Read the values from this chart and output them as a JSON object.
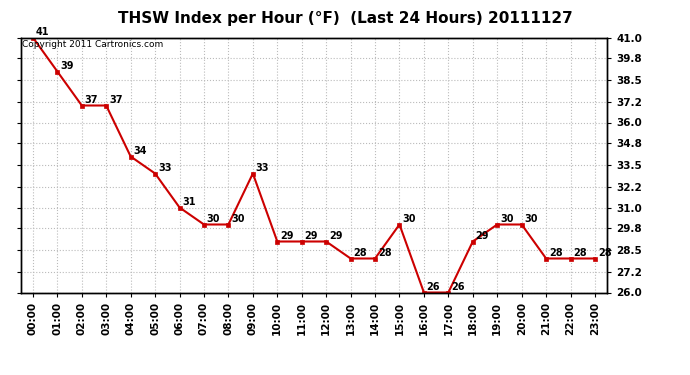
{
  "title": "THSW Index per Hour (°F)  (Last 24 Hours) 20111127",
  "copyright_text": "Copyright 2011 Cartronics.com",
  "hours": [
    "00:00",
    "01:00",
    "02:00",
    "03:00",
    "04:00",
    "05:00",
    "06:00",
    "07:00",
    "08:00",
    "09:00",
    "10:00",
    "11:00",
    "12:00",
    "13:00",
    "14:00",
    "15:00",
    "16:00",
    "17:00",
    "18:00",
    "19:00",
    "20:00",
    "21:00",
    "22:00",
    "23:00"
  ],
  "values": [
    41,
    39,
    37,
    37,
    34,
    33,
    31,
    30,
    30,
    33,
    29,
    29,
    29,
    28,
    28,
    30,
    26,
    26,
    29,
    30,
    30,
    28,
    28,
    28
  ],
  "ylim": [
    26.0,
    41.0
  ],
  "yticks": [
    26.0,
    27.2,
    28.5,
    29.8,
    31.0,
    32.2,
    33.5,
    34.8,
    36.0,
    37.2,
    38.5,
    39.8,
    41.0
  ],
  "ytick_labels": [
    "26.0",
    "27.2",
    "28.5",
    "29.8",
    "31.0",
    "32.2",
    "33.5",
    "34.8",
    "36.0",
    "37.2",
    "38.5",
    "39.8",
    "41.0"
  ],
  "line_color": "#cc0000",
  "marker_color": "#cc0000",
  "bg_color": "#ffffff",
  "plot_bg_color": "#ffffff",
  "grid_color": "#bbbbbb",
  "title_fontsize": 11,
  "label_fontsize": 7.5,
  "annotation_fontsize": 7,
  "copyright_fontsize": 6.5
}
